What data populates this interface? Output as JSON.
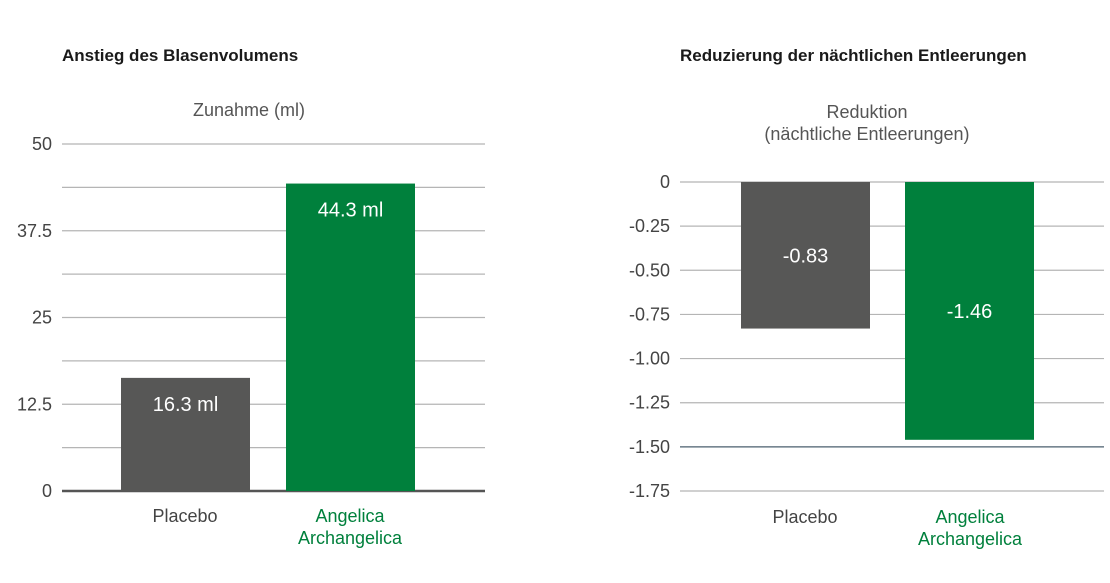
{
  "chart_data": [
    {
      "type": "bar",
      "title": "Anstieg des Blasenvolumens",
      "ylabel": [
        "Zunahme (ml)"
      ],
      "categories": [
        [
          "Placebo"
        ],
        [
          "Angelica",
          "Archangelica"
        ]
      ],
      "values": [
        16.3,
        44.3
      ],
      "data_labels": [
        "16.3 ml",
        "44.3 ml"
      ],
      "ylim": [
        0,
        50
      ],
      "yticks": [
        0,
        12.5,
        25,
        37.5,
        50
      ],
      "ytick_labels": [
        "0",
        "12.5",
        "25",
        "37.5",
        "50"
      ],
      "gridlines": [
        0,
        6.25,
        12.5,
        18.75,
        25,
        31.25,
        37.5,
        43.75,
        50
      ],
      "colors": [
        "#575756",
        "#00803c"
      ],
      "category_colors": [
        "#444444",
        "#00803c"
      ]
    },
    {
      "type": "bar",
      "title": "Reduzierung der nächtlichen Entleerungen",
      "ylabel": [
        "Reduktion",
        "(nächtliche Entleerungen)"
      ],
      "categories": [
        [
          "Placebo"
        ],
        [
          "Angelica",
          "Archangelica"
        ]
      ],
      "values": [
        -0.83,
        -1.46
      ],
      "data_labels": [
        "-0.83",
        "-1.46"
      ],
      "ylim": [
        -1.75,
        0
      ],
      "yticks": [
        0,
        -0.25,
        -0.5,
        -0.75,
        -1,
        -1.25,
        -1.5,
        -1.75
      ],
      "ytick_labels": [
        "0",
        "-0.25",
        "-0.50",
        "-0.75",
        "-1.00",
        "-1.25",
        "-1.50",
        "-1.75"
      ],
      "gridlines": [
        0,
        -0.25,
        -0.5,
        -0.75,
        -1,
        -1.25,
        -1.5,
        -1.75
      ],
      "colors": [
        "#575756",
        "#00803c"
      ],
      "category_colors": [
        "#444444",
        "#00803c"
      ]
    }
  ]
}
